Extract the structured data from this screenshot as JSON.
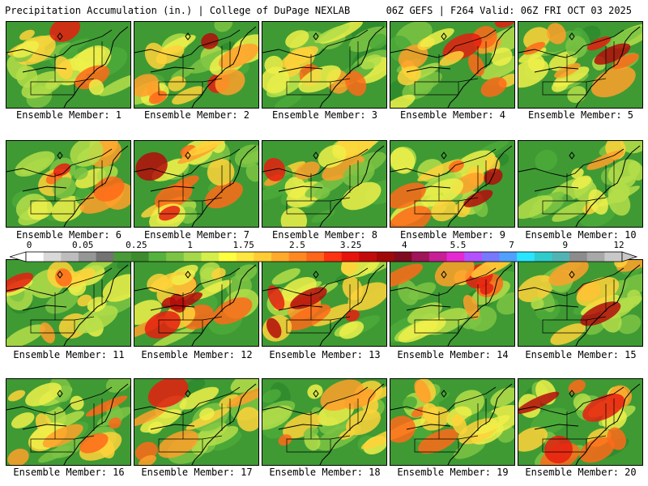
{
  "header": {
    "left_title": "Precipitation Accumulation (in.) | College of DuPage NEXLAB",
    "right_title": "06Z GEFS | F264 Valid: 06Z FRI OCT 03 2025"
  },
  "members": [
    {
      "label": "Ensemble Member: 1",
      "intensity": 0.45
    },
    {
      "label": "Ensemble Member: 2",
      "intensity": 0.7
    },
    {
      "label": "Ensemble Member: 3",
      "intensity": 0.3
    },
    {
      "label": "Ensemble Member: 4",
      "intensity": 0.7
    },
    {
      "label": "Ensemble Member: 5",
      "intensity": 0.55
    },
    {
      "label": "Ensemble Member: 6",
      "intensity": 0.3
    },
    {
      "label": "Ensemble Member: 7",
      "intensity": 0.65
    },
    {
      "label": "Ensemble Member: 8",
      "intensity": 0.45
    },
    {
      "label": "Ensemble Member: 9",
      "intensity": 0.55
    },
    {
      "label": "Ensemble Member: 10",
      "intensity": 0.35
    },
    {
      "label": "Ensemble Member: 11",
      "intensity": 0.55
    },
    {
      "label": "Ensemble Member: 12",
      "intensity": 0.8
    },
    {
      "label": "Ensemble Member: 13",
      "intensity": 0.55
    },
    {
      "label": "Ensemble Member: 14",
      "intensity": 0.65
    },
    {
      "label": "Ensemble Member: 15",
      "intensity": 0.4
    },
    {
      "label": "Ensemble Member: 16",
      "intensity": 0.45
    },
    {
      "label": "Ensemble Member: 17",
      "intensity": 0.6
    },
    {
      "label": "Ensemble Member: 18",
      "intensity": 0.45
    },
    {
      "label": "Ensemble Member: 19",
      "intensity": 0.45
    },
    {
      "label": "Ensemble Member: 20",
      "intensity": 0.7
    }
  ],
  "colorbar": {
    "labels": [
      "0",
      "0.05",
      "0.25",
      "1",
      "1.75",
      "2.5",
      "3.25",
      "4",
      "5.5",
      "7",
      "9",
      "12"
    ],
    "colors": [
      "#ffffff",
      "#d9d9d9",
      "#bdbdbd",
      "#969696",
      "#737373",
      "#4a9a3a",
      "#3c8c2e",
      "#55b23c",
      "#7cc444",
      "#a6d94a",
      "#d4ee4c",
      "#ffff40",
      "#ffe640",
      "#ffcc33",
      "#ffaa2a",
      "#ff8822",
      "#ff661a",
      "#ff3311",
      "#e6140c",
      "#c30a0a",
      "#a00808",
      "#800a20",
      "#a0145a",
      "#c81e96",
      "#e628d2",
      "#b450ff",
      "#7878ff",
      "#50a0ff",
      "#28e6ff",
      "#30cccc",
      "#50b4b4",
      "#8c8c8c",
      "#a8a8a8",
      "#c8c8c8"
    ]
  }
}
